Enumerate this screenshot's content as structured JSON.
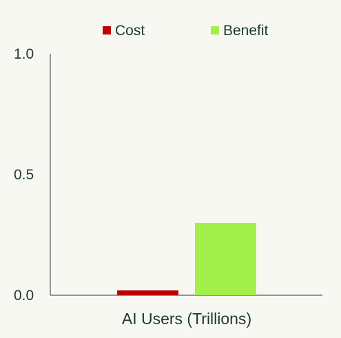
{
  "chart_data": {
    "type": "bar",
    "categories": [
      "AI Users (Trillions)"
    ],
    "xlabel": "AI Users (Trillions)",
    "ylabel": "",
    "title": "",
    "ylim": [
      0,
      1.0
    ],
    "yticks": [
      "0.0",
      "0.5",
      "1.0"
    ],
    "ytick_values": [
      0.0,
      0.5,
      1.0
    ],
    "grid": false,
    "legend_position": "top-center",
    "series": [
      {
        "name": "Cost",
        "values": [
          0.02
        ],
        "color": "#c00000"
      },
      {
        "name": "Benefit",
        "values": [
          0.3
        ],
        "color": "#a3f04a"
      }
    ]
  }
}
